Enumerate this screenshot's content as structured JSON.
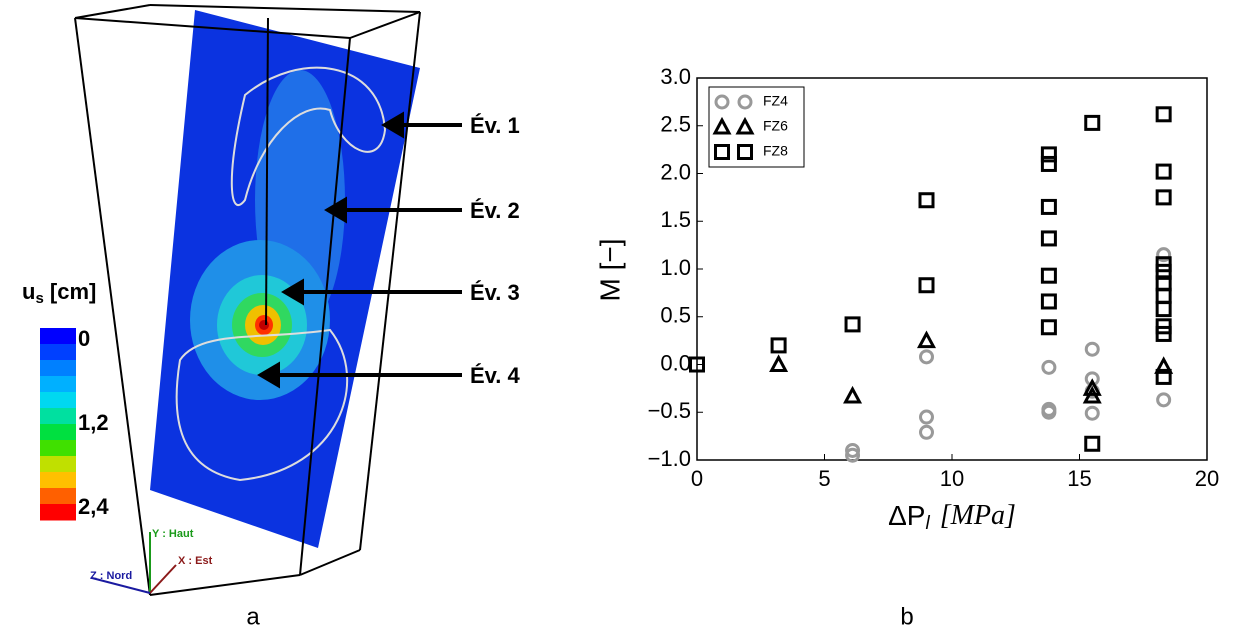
{
  "panel_a": {
    "event_labels": [
      "Év. 1",
      "Év. 2",
      "Év. 3",
      "Év. 4"
    ],
    "colorbar": {
      "title": "u",
      "title_sub": "s",
      "title_unit": " [cm]",
      "labels": [
        "0",
        "1,2",
        "2,4"
      ],
      "colors": [
        "#0000ff",
        "#0040ff",
        "#0080ff",
        "#00b0ff",
        "#00d8f0",
        "#00e0a0",
        "#00e040",
        "#40e000",
        "#c0e000",
        "#ffc000",
        "#ff6000",
        "#ff0000"
      ]
    },
    "axes_labels": {
      "y": "Y : Haut",
      "x": "X : Est",
      "z": "Z : Nord"
    },
    "caption": "a"
  },
  "chart_data": {
    "type": "scatter",
    "caption": "b",
    "ylabel": "M [−]",
    "xlabel": {
      "main": "ΔP",
      "sub": "l",
      "unit": "[MPa]"
    },
    "xlim": [
      0,
      20
    ],
    "ylim": [
      -1,
      3
    ],
    "xticks": [
      0,
      5,
      10,
      15,
      20
    ],
    "yticks": [
      {
        "value": -1,
        "label": "−1.0"
      },
      {
        "value": -0.5,
        "label": "−0.5"
      },
      {
        "value": 0,
        "label": "0.0"
      },
      {
        "value": 0.5,
        "label": "0.5"
      },
      {
        "value": 1,
        "label": "1.0"
      },
      {
        "value": 1.5,
        "label": "1.5"
      },
      {
        "value": 2,
        "label": "2.0"
      },
      {
        "value": 2.5,
        "label": "2.5"
      },
      {
        "value": 3,
        "label": "3.0"
      }
    ],
    "legend": "upper left",
    "series": [
      {
        "name": "FZ4",
        "marker": "circle",
        "color": "#999999",
        "x": [
          6.1,
          6.1,
          9.0,
          9.0,
          9.0,
          13.8,
          13.8,
          13.8,
          15.5,
          15.5,
          15.5,
          15.5,
          18.3,
          18.3
        ],
        "values": [
          -0.9,
          -0.95,
          0.08,
          -0.55,
          -0.71,
          -0.03,
          -0.47,
          -0.5,
          0.16,
          -0.15,
          -0.51,
          -0.28,
          1.15,
          -0.37
        ]
      },
      {
        "name": "FZ6",
        "marker": "triangle",
        "color": "#000000",
        "x": [
          3.2,
          6.1,
          9.0,
          15.5,
          15.5,
          18.3
        ],
        "values": [
          0.0,
          -0.33,
          0.25,
          -0.25,
          -0.33,
          -0.02
        ]
      },
      {
        "name": "FZ8",
        "marker": "square",
        "color": "#000000",
        "x": [
          0,
          3.2,
          6.1,
          9.0,
          9.0,
          13.8,
          13.8,
          13.8,
          13.8,
          13.8,
          13.8,
          13.8,
          15.5,
          15.5,
          18.3,
          18.3,
          18.3,
          18.3,
          18.3,
          18.3,
          18.3,
          18.3,
          18.3,
          18.3,
          18.3
        ],
        "values": [
          0.0,
          0.2,
          0.42,
          1.72,
          0.83,
          2.2,
          2.1,
          1.65,
          1.32,
          0.93,
          0.66,
          0.39,
          2.53,
          -0.83,
          2.62,
          2.02,
          1.75,
          1.05,
          0.97,
          0.85,
          0.72,
          0.58,
          0.4,
          0.32,
          -0.13
        ]
      }
    ]
  }
}
